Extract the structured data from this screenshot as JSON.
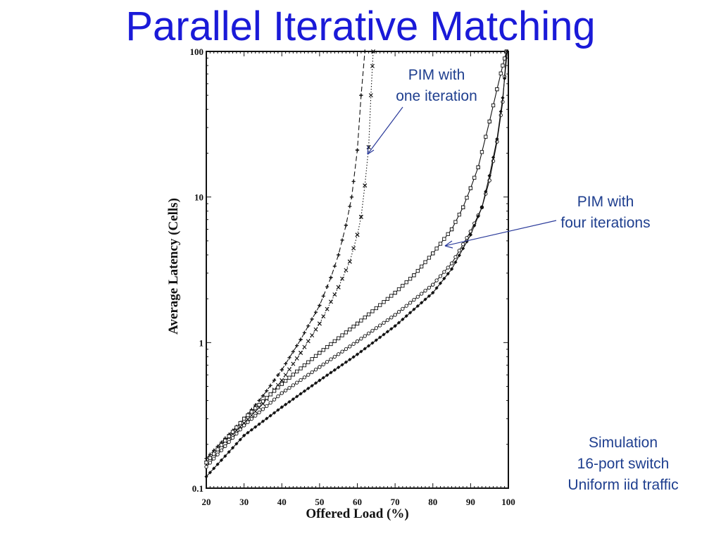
{
  "slide": {
    "title": "Parallel Iterative Matching",
    "annotations": {
      "one_iteration": [
        "PIM with",
        "one iteration"
      ],
      "four_iterations": [
        "PIM with",
        "four iterations"
      ],
      "simulation_note": [
        "Simulation",
        "16-port switch",
        "Uniform iid traffic"
      ]
    }
  },
  "colors": {
    "title": "#1a1ad8",
    "annotation_text": "#1f3f8f",
    "annotation_arrow": "#2a3a9a",
    "plot_ink": "#111111"
  },
  "chart_data": {
    "type": "line",
    "xlabel": "Offered Load (%)",
    "ylabel": "Average Latency (Cells)",
    "xlim": [
      20,
      100
    ],
    "ylim": [
      0.1,
      100
    ],
    "y_scale": "log",
    "x_ticks": [
      "20",
      "30",
      "40",
      "50",
      "60",
      "70",
      "80",
      "90",
      "100"
    ],
    "y_ticks": [
      "0.1",
      "1",
      "10",
      "100"
    ],
    "grid": false,
    "series": [
      {
        "marker": "plus",
        "dash": "dashed",
        "x": [
          20,
          25,
          30,
          35,
          40,
          45,
          50,
          53,
          55,
          57,
          58.5,
          60,
          61,
          62
        ],
        "y": [
          0.16,
          0.22,
          0.3,
          0.43,
          0.65,
          1.05,
          1.8,
          2.8,
          4.0,
          6.4,
          10,
          21,
          50,
          100
        ]
      },
      {
        "marker": "x",
        "dash": "dotted",
        "x": [
          20,
          25,
          30,
          35,
          40,
          45,
          50,
          55,
          58,
          60,
          61,
          62,
          63,
          63.6,
          64.2
        ],
        "y": [
          0.15,
          0.21,
          0.28,
          0.38,
          0.55,
          0.85,
          1.35,
          2.4,
          3.6,
          5.5,
          7.3,
          12,
          22,
          50,
          100
        ]
      },
      {
        "marker": "square",
        "dash": "solid",
        "x": [
          20,
          30,
          40,
          50,
          60,
          70,
          75,
          80,
          85,
          88,
          90,
          92,
          95,
          97,
          98.5,
          99.5
        ],
        "y": [
          0.15,
          0.3,
          0.52,
          0.85,
          1.35,
          2.2,
          2.9,
          4.1,
          6.0,
          8.5,
          11.5,
          16,
          33,
          55,
          80,
          100
        ]
      },
      {
        "marker": "circle",
        "dash": "solid",
        "x": [
          20,
          30,
          40,
          50,
          60,
          70,
          80,
          85,
          90,
          93,
          95,
          97,
          98.5,
          99.5
        ],
        "y": [
          0.14,
          0.27,
          0.45,
          0.68,
          1.02,
          1.55,
          2.5,
          3.5,
          5.8,
          8.5,
          13,
          24,
          45,
          100
        ]
      },
      {
        "marker": "diamond",
        "dash": "solid",
        "x": [
          20,
          30,
          40,
          50,
          60,
          70,
          80,
          85,
          90,
          93,
          95,
          97,
          98.5,
          99.7
        ],
        "y": [
          0.12,
          0.23,
          0.36,
          0.55,
          0.83,
          1.3,
          2.2,
          3.2,
          5.5,
          8.5,
          14,
          25,
          48,
          100
        ]
      }
    ]
  }
}
